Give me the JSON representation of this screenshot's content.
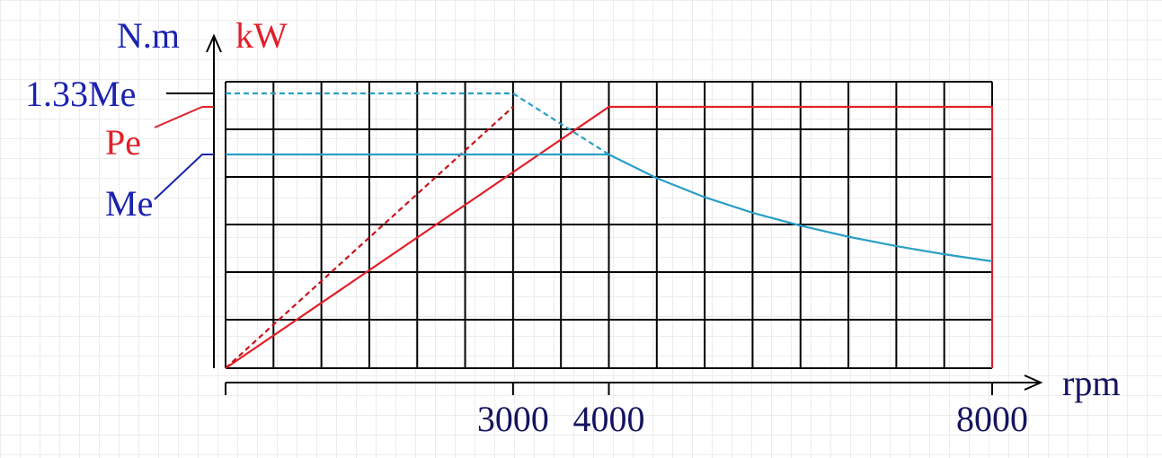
{
  "chart_data": {
    "type": "line",
    "title": "",
    "xlabel": "rpm",
    "ylabel_left": "N.m",
    "ylabel_right": "kW",
    "x_ticks": [
      3000,
      4000,
      8000
    ],
    "x_tick_labels": [
      "3000",
      "4000",
      "8000"
    ],
    "xlim": [
      0,
      8000
    ],
    "y_reference_labels": [
      "1.33Me",
      "Pe",
      "Me"
    ],
    "y_reference_values": {
      "Me": 1.0,
      "Pe": 1.11,
      "1.33Me": 1.33
    },
    "grid": true,
    "series": [
      {
        "name": "Pe",
        "style": "solid",
        "color": "#e0202a",
        "x": [
          0,
          4000,
          8000,
          8000
        ],
        "y": [
          0,
          1.11,
          1.11,
          0
        ]
      },
      {
        "name": "Pe",
        "style": "dashed",
        "color": "#c8141e",
        "x": [
          0,
          3000
        ],
        "y": [
          0,
          1.11
        ]
      },
      {
        "name": "Me",
        "style": "solid",
        "color": "#2a9fc4",
        "x": [
          0,
          4000,
          4500,
          5000,
          5500,
          6000,
          6500,
          7000,
          7500,
          8000
        ],
        "y": [
          1.0,
          1.0,
          0.889,
          0.8,
          0.727,
          0.667,
          0.615,
          0.571,
          0.533,
          0.5
        ]
      },
      {
        "name": "1.33Me",
        "style": "dashed",
        "color": "#2a9fc4",
        "x": [
          0,
          3000,
          4000
        ],
        "y": [
          1.33,
          1.33,
          1.0
        ]
      }
    ]
  },
  "colors": {
    "axis_label_blue": "#1b22b0",
    "axis_label_red": "#e0202a",
    "tick_label": "#141460"
  }
}
